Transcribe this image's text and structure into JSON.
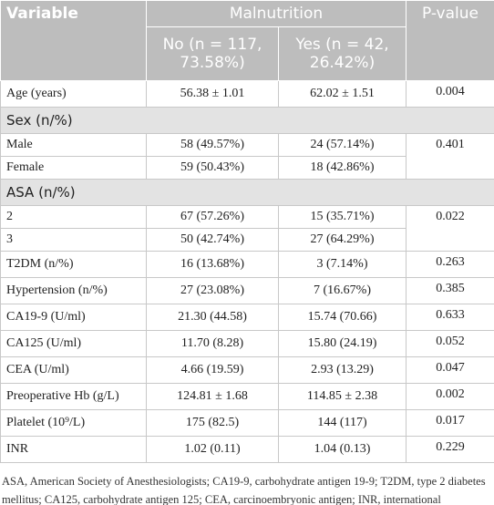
{
  "table": {
    "header": {
      "variable": "Variable",
      "group": "Malnutrition",
      "p_value": "P-value",
      "no": "No (n = 117, 73.58%)",
      "yes": "Yes (n = 42, 26.42%)"
    },
    "rows": [
      {
        "label": "Age (years)",
        "no": "56.38 ± 1.01",
        "yes": "62.02 ± 1.51",
        "p": "0.004"
      },
      {
        "section": "Sex (n/%)"
      },
      {
        "label": "Male",
        "no": "58 (49.57%)",
        "yes": "24 (57.14%)",
        "p": "0.401"
      },
      {
        "label": "Female",
        "no": "59 (50.43%)",
        "yes": "18 (42.86%)"
      },
      {
        "section": "ASA (n/%)"
      },
      {
        "label": "2",
        "no": "67 (57.26%)",
        "yes": "15 (35.71%)",
        "p": "0.022"
      },
      {
        "label": "3",
        "no": "50 (42.74%)",
        "yes": "27 (64.29%)"
      },
      {
        "label": "T2DM (n/%)",
        "no": "16 (13.68%)",
        "yes": "3 (7.14%)",
        "p": "0.263"
      },
      {
        "label": "Hypertension (n/%)",
        "no": "27 (23.08%)",
        "yes": "7 (16.67%)",
        "p": "0.385"
      },
      {
        "label": "CA19-9 (U/ml)",
        "no": "21.30 (44.58)",
        "yes": "15.74 (70.66)",
        "p": "0.633"
      },
      {
        "label": "CA125 (U/ml)",
        "no": "11.70 (8.28)",
        "yes": "15.80 (24.19)",
        "p": "0.052"
      },
      {
        "label": "CEA (U/ml)",
        "no": "4.66 (19.59)",
        "yes": "2.93 (13.29)",
        "p": "0.047"
      },
      {
        "label": "Preoperative Hb (g/L)",
        "no": "124.81 ± 1.68",
        "yes": "114.85 ± 2.38",
        "p": "0.002"
      },
      {
        "label": "Platelet (10⁹/L)",
        "no": "175 (82.5)",
        "yes": "144 (117)",
        "p": "0.017"
      },
      {
        "label": "INR",
        "no": "1.02 (0.11)",
        "yes": "1.04 (0.13)",
        "p": "0.229"
      }
    ],
    "footnote": "ASA, American Society of Anesthesiologists; CA19-9, carbohydrate antigen 19-9; T2DM, type 2 diabetes mellitus; CA125, carbohydrate antigen 125; CEA, carcinoembryonic antigen; INR, international normalized ratio; Hb, hemoglobin."
  }
}
